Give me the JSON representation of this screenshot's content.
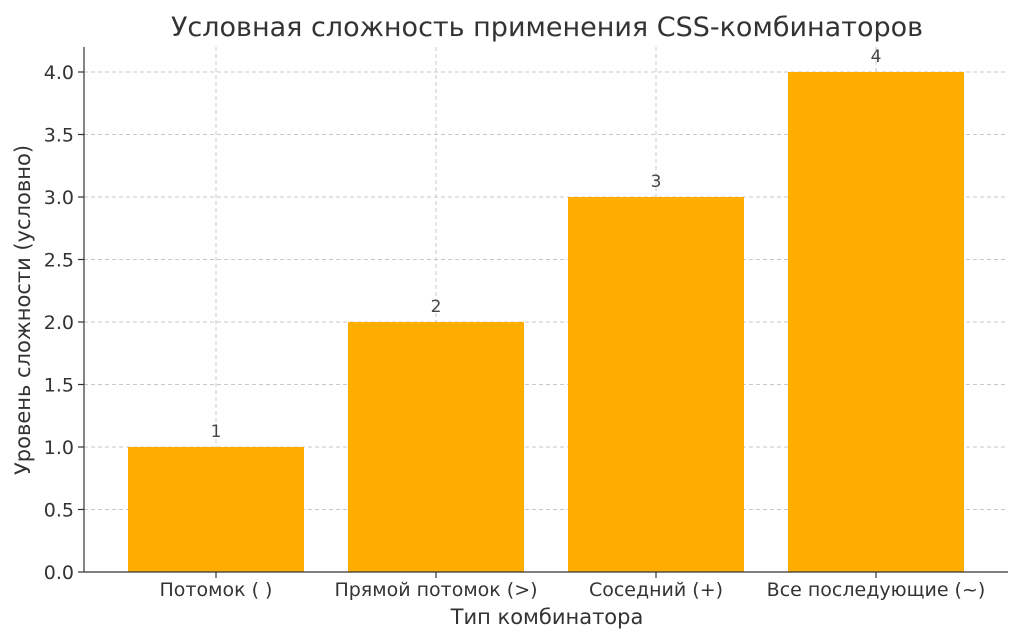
{
  "chart_data": {
    "type": "bar",
    "title": "Условная сложность применения CSS-комбинаторов",
    "xlabel": "Тип комбинатора",
    "ylabel": "Уровень сложности (условно)",
    "categories": [
      "Потомок ( )",
      "Прямой потомок (>)",
      "Соседний (+)",
      "Все последующие (~)"
    ],
    "values": [
      1,
      2,
      3,
      4
    ],
    "data_labels": [
      "1",
      "2",
      "3",
      "4"
    ],
    "ylim": [
      0,
      4.2
    ],
    "yticks": [
      0.0,
      0.5,
      1.0,
      1.5,
      2.0,
      2.5,
      3.0,
      3.5,
      4.0
    ],
    "ytick_labels": [
      "0.0",
      "0.5",
      "1.0",
      "1.5",
      "2.0",
      "2.5",
      "3.0",
      "3.5",
      "4.0"
    ],
    "grid": true,
    "bar_color": "#FFAE00"
  }
}
